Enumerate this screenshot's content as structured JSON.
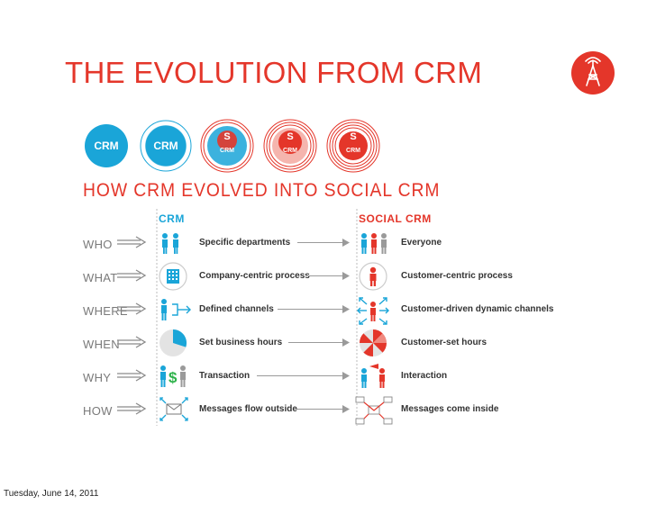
{
  "slide": {
    "title": "THE EVOLUTION FROM CRM",
    "date": "Tuesday, June 14, 2011"
  },
  "colors": {
    "red": "#e4362a",
    "blue": "#1aa5d8",
    "gray": "#9a9a9a"
  },
  "logo": {
    "icon": "radio-tower-icon"
  },
  "infographic": {
    "evolution_labels": [
      "CRM",
      "CRM",
      "CRM",
      "CRM",
      "CRM"
    ],
    "evolution_s": "S",
    "heading": "HOW CRM EVOLVED INTO SOCIAL CRM",
    "crm_header": "CRM",
    "social_header": "SOCIAL CRM",
    "rows": [
      {
        "question": "WHO",
        "crm": "Specific departments",
        "social": "Everyone",
        "crm_icon": "two-people-icon",
        "social_icon": "three-people-icon"
      },
      {
        "question": "WHAT",
        "crm": "Company-centric process",
        "social": "Customer-centric process",
        "crm_icon": "building-icon",
        "social_icon": "customer-circle-icon"
      },
      {
        "question": "WHERE",
        "crm": "Defined channels",
        "social": "Customer-driven dynamic channels",
        "crm_icon": "person-channels-icon",
        "social_icon": "person-radiating-arrows-icon"
      },
      {
        "question": "WHEN",
        "crm": "Set business hours",
        "social": "Customer-set hours",
        "crm_icon": "clock-quarter-icon",
        "social_icon": "clock-segments-icon"
      },
      {
        "question": "WHY",
        "crm": "Transaction",
        "social": "Interaction",
        "crm_icon": "person-dollar-icon",
        "social_icon": "people-conversation-icon"
      },
      {
        "question": "HOW",
        "crm": "Messages flow outside",
        "social": "Messages come inside",
        "crm_icon": "envelope-outward-icon",
        "social_icon": "envelope-inward-icon"
      }
    ]
  }
}
